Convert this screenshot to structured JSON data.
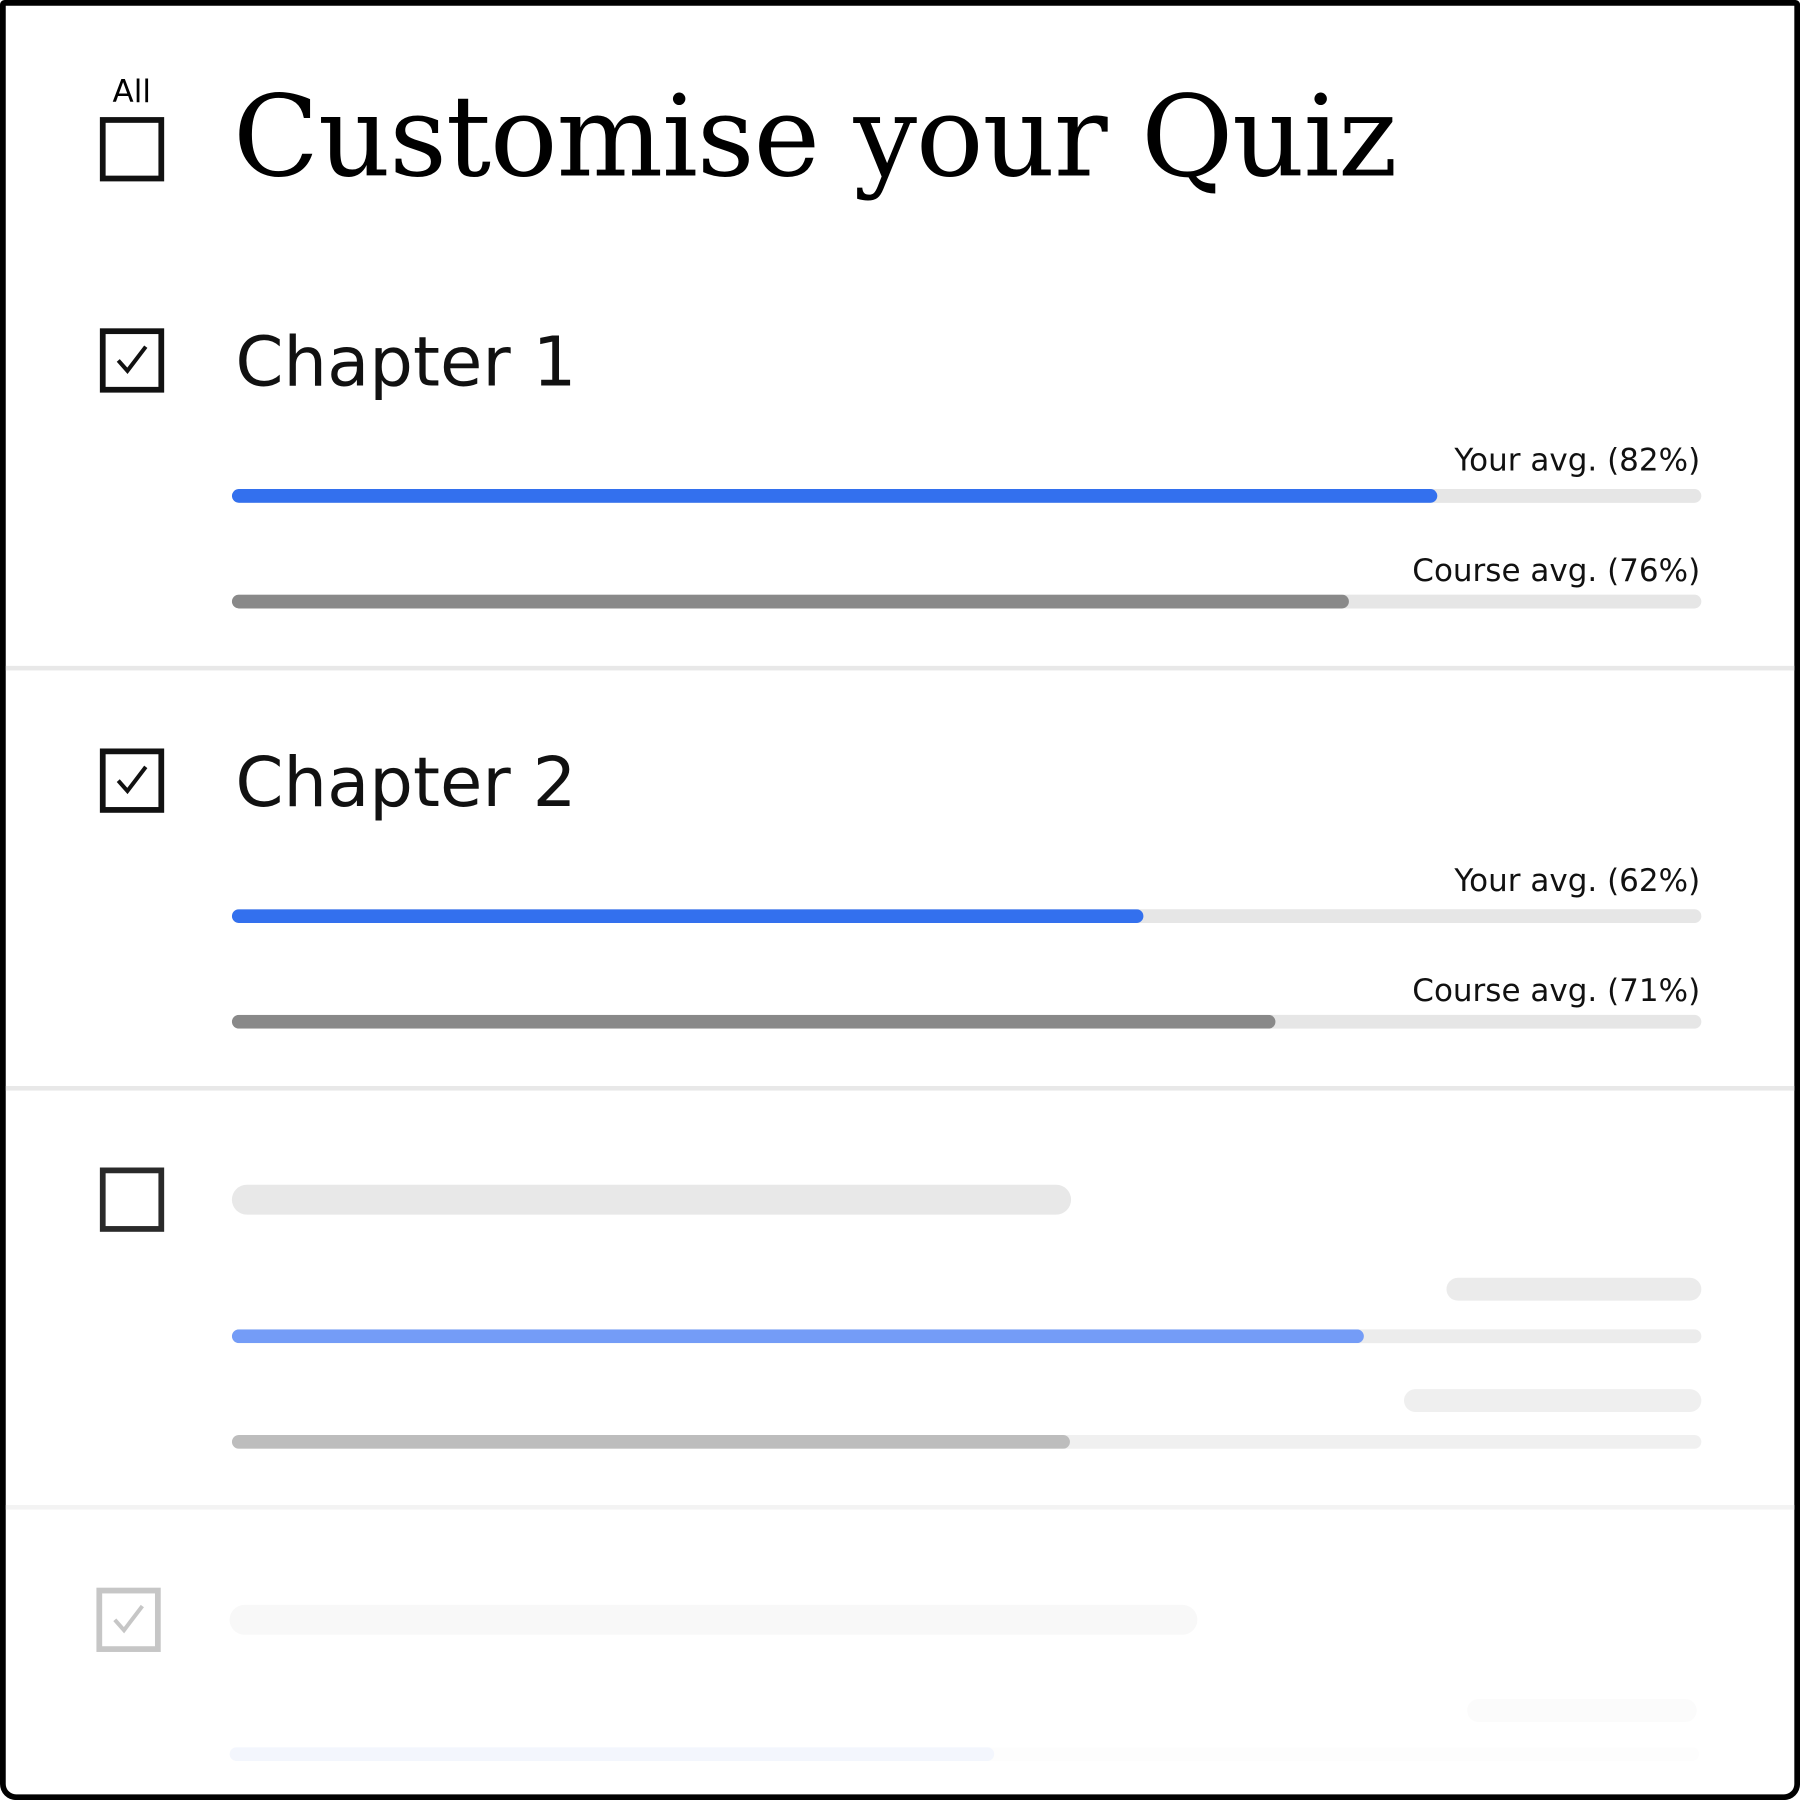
{
  "header": {
    "all_label": "All",
    "title": "Customise your Quiz",
    "all_checked": false
  },
  "colors": {
    "your_avg": "#3370ee",
    "course_avg": "#898989",
    "track": "#e6e6e6"
  },
  "chapters": [
    {
      "title": "Chapter 1",
      "checked": true,
      "your_avg_label": "Your avg. (82%)",
      "your_avg": 82,
      "course_avg_label": "Course avg. (76%)",
      "course_avg": 76
    },
    {
      "title": "Chapter 2",
      "checked": true,
      "your_avg_label": "Your avg. (62%)",
      "your_avg": 62,
      "course_avg_label": "Course avg. (71%)",
      "course_avg": 71
    }
  ],
  "placeholders": [
    {
      "checked": false,
      "your_avg": 77,
      "course_avg": 57
    },
    {
      "checked": true,
      "your_avg": 52
    }
  ]
}
